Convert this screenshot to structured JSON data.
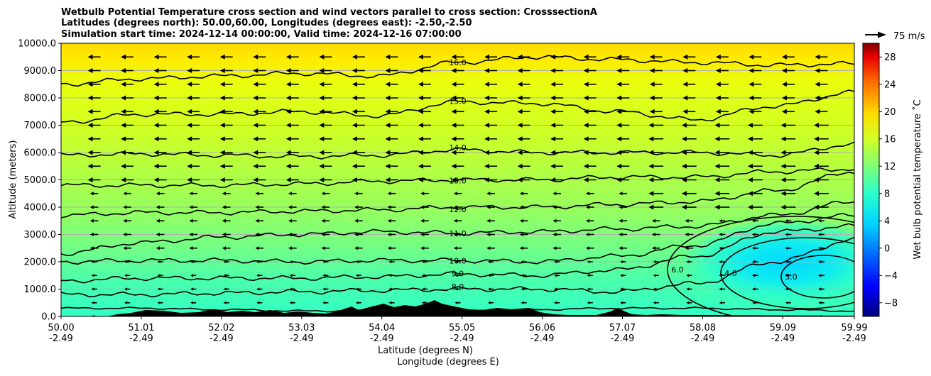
{
  "chart_data": {
    "type": "heatmap",
    "title_lines": [
      "Wetbulb Potential Temperature cross section and wind vectors parallel to cross section: CrosssectionA",
      "Latitudes (degrees north): 50.00,60.00, Longitudes (degrees east): -2.50,-2.50",
      "Simulation start time: 2024-12-14 00:00:00, Valid time: 2024-12-16 07:00:00"
    ],
    "xlabel": "Latitude (degrees N)",
    "xlabel2": "Longitude (degrees E)",
    "ylabel": "Altitude (meters)",
    "colorbar_label": "Wet bulb potential temperature ˚C",
    "x_tick_lat": [
      "50.00",
      "51.01",
      "52.02",
      "53.03",
      "54.04",
      "55.05",
      "56.06",
      "57.07",
      "58.08",
      "59.09",
      "59.99"
    ],
    "x_tick_lon": [
      "-2.49",
      "-2.49",
      "-2.49",
      "-2.49",
      "-2.49",
      "-2.49",
      "-2.49",
      "-2.49",
      "-2.49",
      "-2.49",
      "-2.49"
    ],
    "xlim": [
      50.0,
      59.99
    ],
    "y_ticks": [
      "0.0",
      "1000.0",
      "2000.0",
      "3000.0",
      "4000.0",
      "5000.0",
      "6000.0",
      "7000.0",
      "8000.0",
      "9000.0",
      "10000.0"
    ],
    "ylim": [
      0,
      10000
    ],
    "colorbar_ticks": [
      "28",
      "24",
      "20",
      "16",
      "12",
      "8",
      "4",
      "0",
      "−4",
      "−8"
    ],
    "colorbar_range": [
      -10,
      30
    ],
    "colormap": "jet",
    "grid": true,
    "wind_key_label": "75 m/s",
    "wind_direction": "southward (arrows point toward lower latitude)",
    "terrain_color": "#000000",
    "contour_levels": [
      {
        "level": 6.0,
        "label": "6.0",
        "y_m": [
          300,
          300,
          250,
          200,
          200,
          200,
          250,
          300,
          300,
          250,
          200
        ]
      },
      {
        "level": 8.0,
        "label": "8.0",
        "y_m": [
          800,
          800,
          850,
          900,
          950,
          1000,
          1000,
          900,
          1200,
          2000,
          2800
        ]
      },
      {
        "level": 9.0,
        "label": "9.0",
        "y_m": [
          1300,
          1400,
          1400,
          1400,
          1450,
          1550,
          1500,
          1700,
          2200,
          3100,
          3300
        ]
      },
      {
        "level": 10.0,
        "label": "10.0",
        "y_m": [
          2000,
          2050,
          2050,
          2000,
          2050,
          2050,
          2000,
          2200,
          2600,
          3400,
          3700
        ]
      },
      {
        "level": 11.0,
        "label": "11.0",
        "y_m": [
          2300,
          2700,
          2900,
          3000,
          3100,
          3050,
          3100,
          3200,
          3300,
          3700,
          4200
        ]
      },
      {
        "level": 12.0,
        "label": "12.0",
        "y_m": [
          3700,
          3800,
          3800,
          3850,
          3900,
          4000,
          4000,
          4100,
          4200,
          4600,
          5300
        ]
      },
      {
        "level": 13.0,
        "label": "13.0",
        "y_m": [
          4800,
          4800,
          4800,
          4850,
          4950,
          5000,
          5000,
          5100,
          5100,
          5300,
          5400
        ]
      },
      {
        "level": 14.0,
        "label": "14.0",
        "y_m": [
          5900,
          5950,
          5900,
          5850,
          5900,
          6100,
          6000,
          6000,
          6000,
          5900,
          6300
        ]
      },
      {
        "level": 15.0,
        "label": "15.0",
        "y_m": [
          7100,
          7400,
          7400,
          7500,
          7350,
          7850,
          7800,
          7500,
          7200,
          7700,
          8200
        ]
      },
      {
        "level": 16.0,
        "label": "16.0",
        "y_m": [
          8500,
          8700,
          8800,
          8900,
          8800,
          9300,
          9500,
          9400,
          9300,
          9200,
          9250
        ]
      }
    ],
    "contour_labels_visible": [
      "16.0",
      "15.0",
      "14.0",
      "13.0",
      "12.0",
      "11.0",
      "10.0",
      "9.0",
      "8.0",
      "6.0",
      "4.0",
      "3.0",
      "7"
    ]
  }
}
